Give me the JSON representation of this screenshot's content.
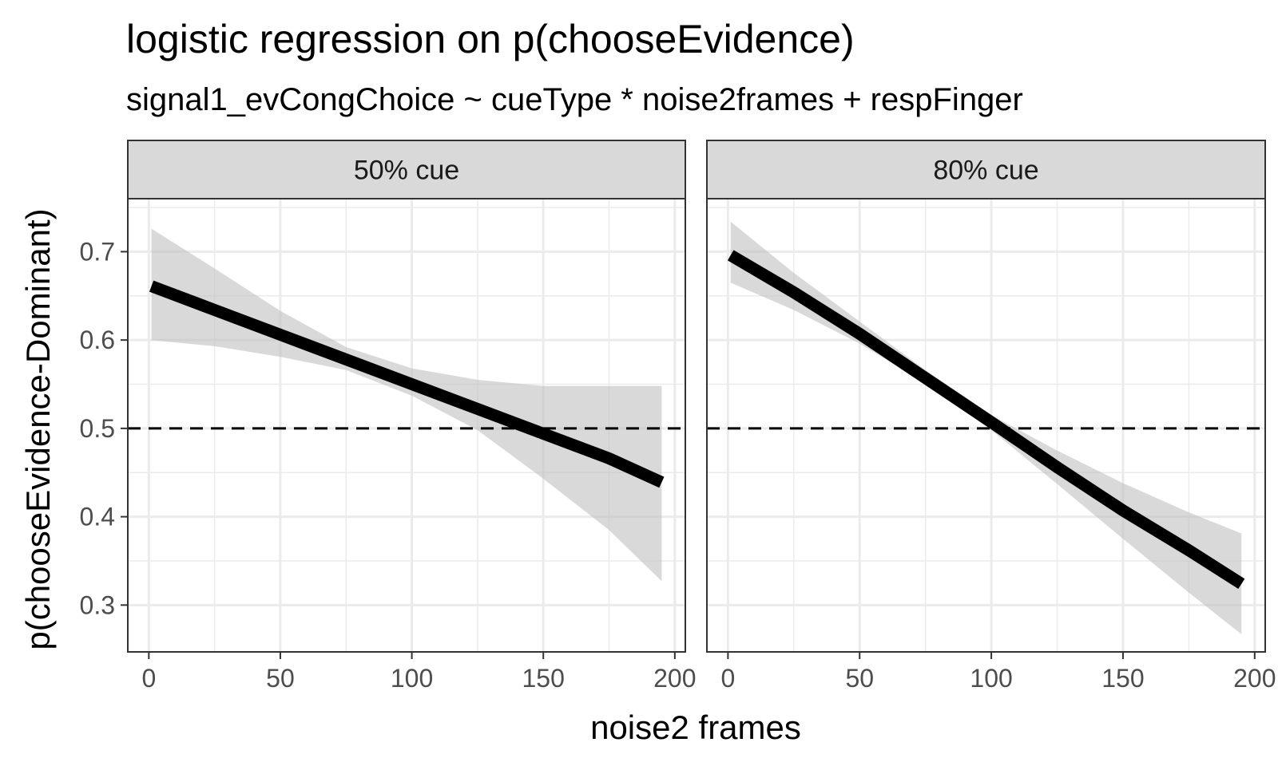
{
  "chart_data": {
    "type": "line",
    "title": "logistic regression on p(chooseEvidence)",
    "subtitle": "signal1_evCongChoice ~ cueType * noise2frames + respFinger",
    "xlabel": "noise2 frames",
    "ylabel": "p(chooseEvidence-Dominant)",
    "xlim": [
      -8,
      204
    ],
    "ylim": [
      0.247,
      0.76
    ],
    "x_ticks": [
      0,
      50,
      100,
      150,
      200
    ],
    "x_tick_labels": [
      "0",
      "50",
      "100",
      "150",
      "200"
    ],
    "y_ticks": [
      0.3,
      0.4,
      0.5,
      0.6,
      0.7
    ],
    "y_tick_labels": [
      "0.3",
      "0.4",
      "0.5",
      "0.6",
      "0.7"
    ],
    "reference_line": {
      "y": 0.5,
      "style": "dashed"
    },
    "grid": true,
    "colors": {
      "line": "#000000",
      "ribbon": "#bfbfbf",
      "strip_fill": "#d9d9d9",
      "panel_border": "#333333",
      "grid": "#ebebeb",
      "reference_line": "#000000"
    },
    "panels": [
      {
        "label": "50% cue",
        "x": [
          1,
          25,
          50,
          75,
          100,
          125,
          150,
          175,
          195
        ],
        "fit": [
          0.661,
          0.634,
          0.606,
          0.578,
          0.55,
          0.522,
          0.494,
          0.466,
          0.439
        ],
        "lower": [
          0.6,
          0.593,
          0.581,
          0.566,
          0.537,
          0.498,
          0.443,
          0.385,
          0.327
        ],
        "upper": [
          0.726,
          0.681,
          0.633,
          0.592,
          0.568,
          0.555,
          0.548,
          0.548,
          0.548
        ]
      },
      {
        "label": "80% cue",
        "x": [
          1,
          25,
          50,
          75,
          100,
          125,
          150,
          175,
          195
        ],
        "fit": [
          0.696,
          0.654,
          0.607,
          0.557,
          0.507,
          0.456,
          0.407,
          0.362,
          0.324
        ],
        "lower": [
          0.665,
          0.634,
          0.596,
          0.551,
          0.498,
          0.437,
          0.375,
          0.314,
          0.267
        ],
        "upper": [
          0.734,
          0.676,
          0.621,
          0.566,
          0.515,
          0.475,
          0.438,
          0.405,
          0.381
        ]
      }
    ]
  }
}
